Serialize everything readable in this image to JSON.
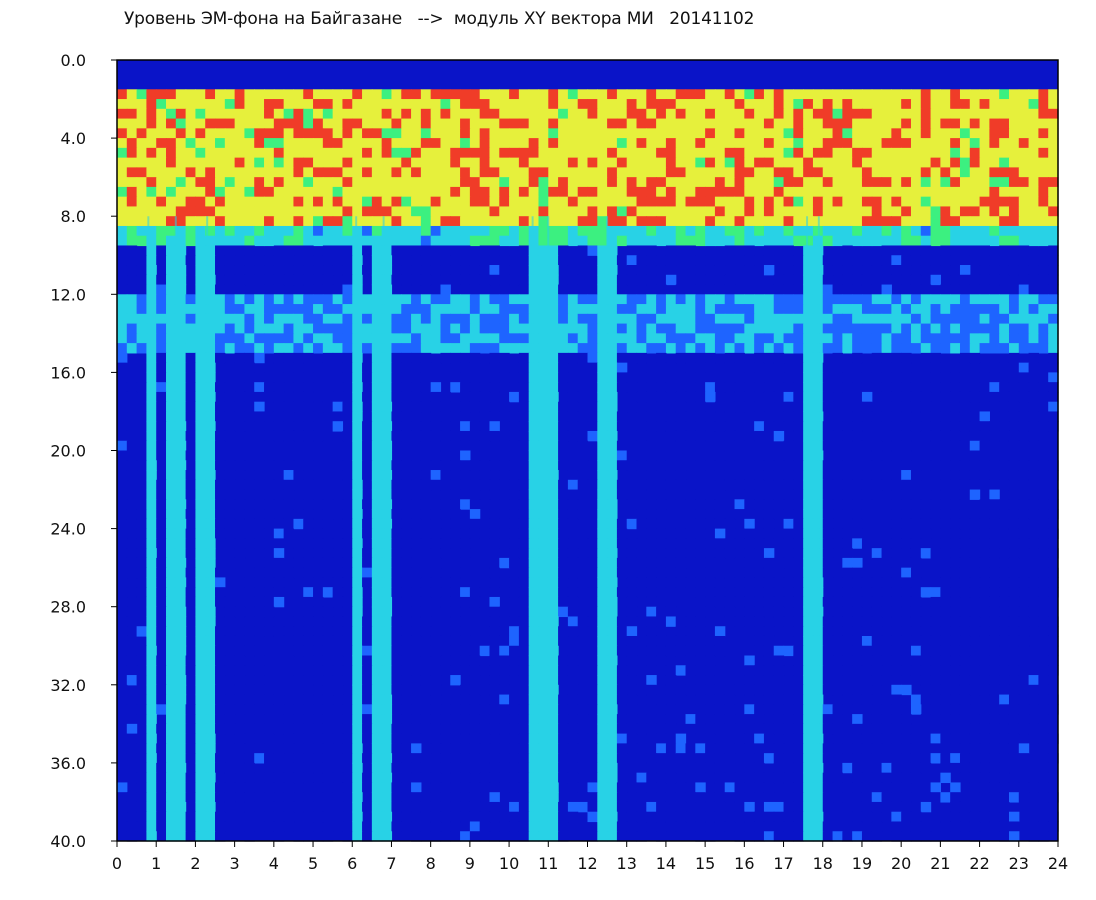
{
  "chart_data": {
    "type": "heatmap",
    "title": "Уровень ЭМ-фона на Байгазане   -->  модуль XY вектора МИ   20141102",
    "xlabel": "",
    "ylabel": "",
    "xlim": [
      0,
      24
    ],
    "ylim": [
      40,
      0
    ],
    "x_ticks": [
      "0",
      "1",
      "2",
      "3",
      "4",
      "5",
      "6",
      "7",
      "8",
      "9",
      "10",
      "11",
      "12",
      "13",
      "14",
      "15",
      "16",
      "17",
      "18",
      "19",
      "20",
      "21",
      "22",
      "23",
      "24"
    ],
    "y_ticks": [
      "0.0",
      "4.0",
      "8.0",
      "12.0",
      "16.0",
      "20.0",
      "24.0",
      "28.0",
      "32.0",
      "36.0",
      "40.0"
    ],
    "grid": false,
    "legend": "none",
    "colormap": [
      "#0a14c8",
      "#1e64ff",
      "#28d2e6",
      "#3cf080",
      "#e6f03c",
      "#f03c28"
    ],
    "bands": [
      {
        "y_from": 1.5,
        "y_to": 8.5,
        "level": "high"
      },
      {
        "y_from": 8.5,
        "y_to": 9.5,
        "level": "medium"
      },
      {
        "y_from": 12.0,
        "y_to": 15.0,
        "level": "elevated"
      },
      {
        "y_from": 15.0,
        "y_to": 40.0,
        "level": "low"
      }
    ],
    "vertical_streaks_x": [
      0.8,
      1.5,
      2.3,
      6.1,
      6.8,
      10.6,
      11.0,
      12.5,
      17.6,
      17.9
    ]
  }
}
